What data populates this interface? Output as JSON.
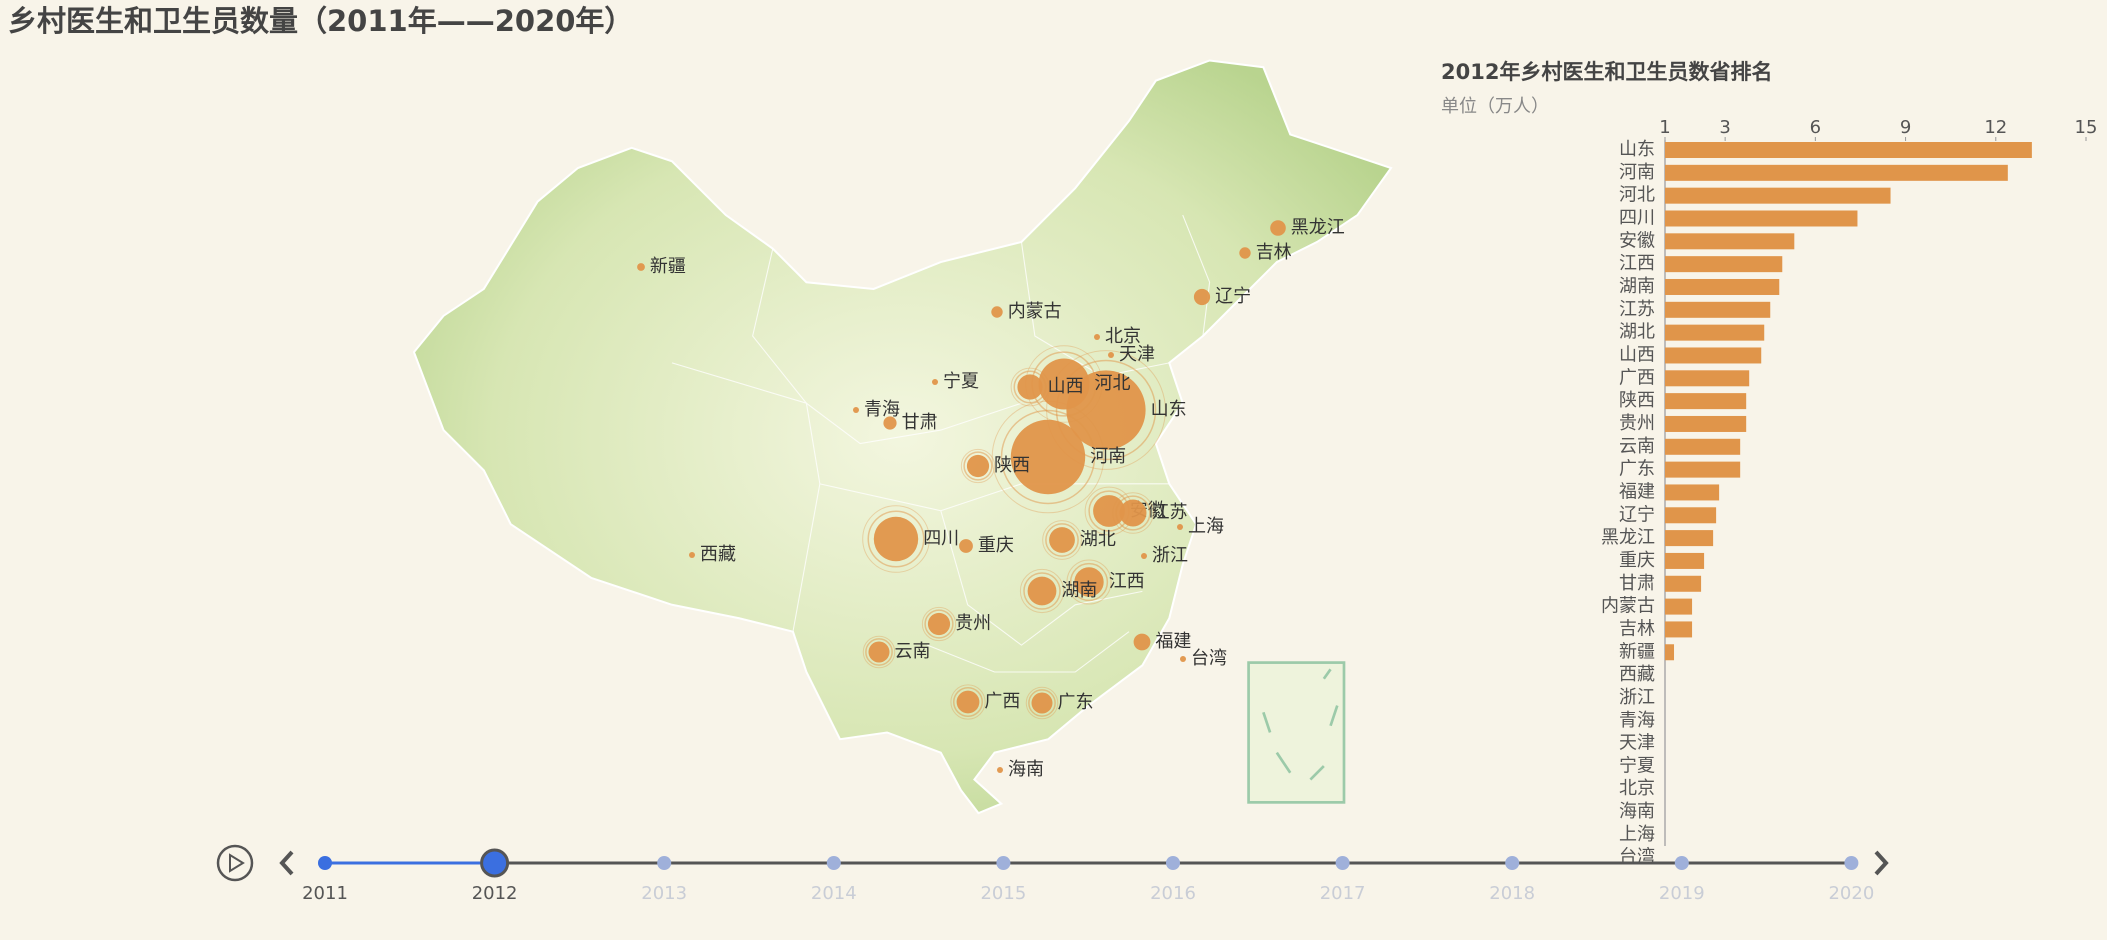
{
  "title": "乡村医生和卫生员数量（2011年——2020年）",
  "chart_data": {
    "type": "bar",
    "orientation": "horizontal",
    "title": "2012年乡村医生和卫生员数省排名",
    "subtitle": "单位（万人）",
    "categories": [
      "山东",
      "河南",
      "河北",
      "四川",
      "安徽",
      "江西",
      "湖南",
      "江苏",
      "湖北",
      "山西",
      "广西",
      "陕西",
      "贵州",
      "云南",
      "广东",
      "福建",
      "辽宁",
      "黑龙江",
      "重庆",
      "甘肃",
      "内蒙古",
      "吉林",
      "新疆",
      "西藏",
      "浙江",
      "青海",
      "天津",
      "宁夏",
      "北京",
      "海南",
      "上海",
      "台湾"
    ],
    "values": [
      13.2,
      12.4,
      8.5,
      7.4,
      5.3,
      4.9,
      4.8,
      4.5,
      4.3,
      4.2,
      3.8,
      3.7,
      3.7,
      3.5,
      3.5,
      2.8,
      2.7,
      2.6,
      2.3,
      2.2,
      1.9,
      1.9,
      1.3,
      1,
      1,
      1,
      1,
      1,
      1,
      1,
      1,
      1
    ],
    "color": "#e0954a",
    "xlim": [
      1,
      15
    ],
    "xticks": [
      1,
      3,
      6,
      9,
      12,
      15
    ]
  },
  "timeline": {
    "years": [
      2011,
      2012,
      2013,
      2014,
      2015,
      2016,
      2017,
      2018,
      2019,
      2020
    ],
    "current": 2012
  }
}
